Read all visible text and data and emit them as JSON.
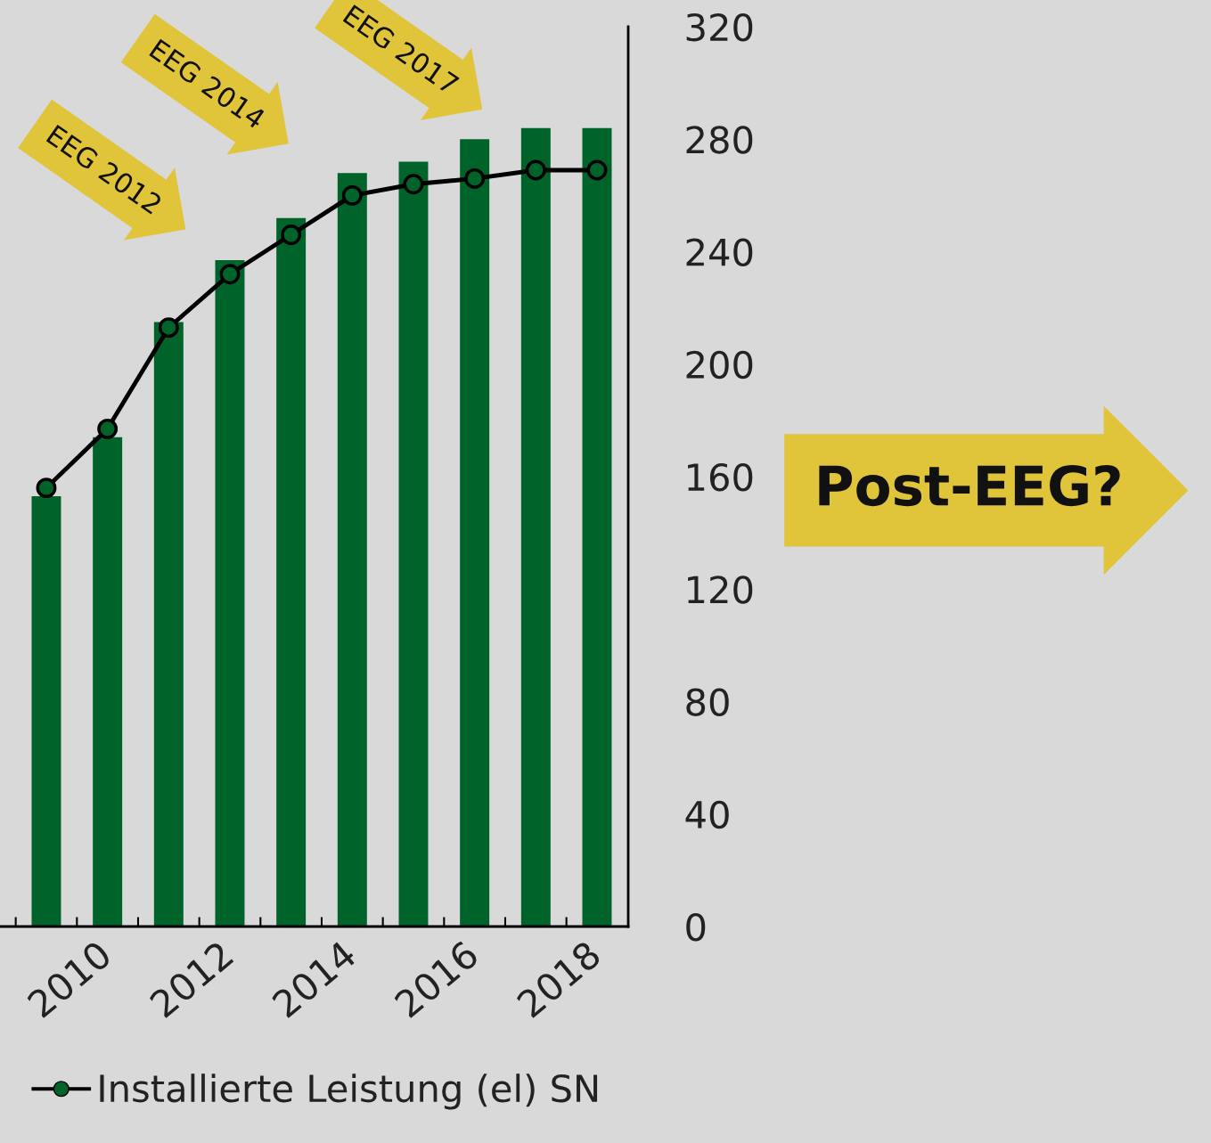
{
  "chart_data": {
    "type": "bar",
    "categories": [
      null,
      "2010",
      null,
      "2012",
      null,
      "2014",
      null,
      "2016",
      null,
      "2018"
    ],
    "series": [
      {
        "color": "#00632a",
        "values": [
          153,
          174,
          215,
          237,
          252,
          268,
          272,
          280,
          284,
          284
        ]
      },
      {
        "type": "line",
        "name": "Installierte Leistung (el) SN",
        "color": "#000000",
        "marker": "circle",
        "values": [
          156,
          177,
          213,
          232,
          246,
          260,
          264,
          266,
          269,
          269
        ]
      }
    ],
    "ylim": [
      0,
      320
    ],
    "yticks": [
      0,
      40,
      80,
      120,
      160,
      200,
      240,
      280,
      320
    ],
    "grid": false,
    "legend": "bottom",
    "annotations": [
      "EEG 2012",
      "EEG 2014",
      "EEG 2017",
      "Post-EEG?"
    ]
  }
}
